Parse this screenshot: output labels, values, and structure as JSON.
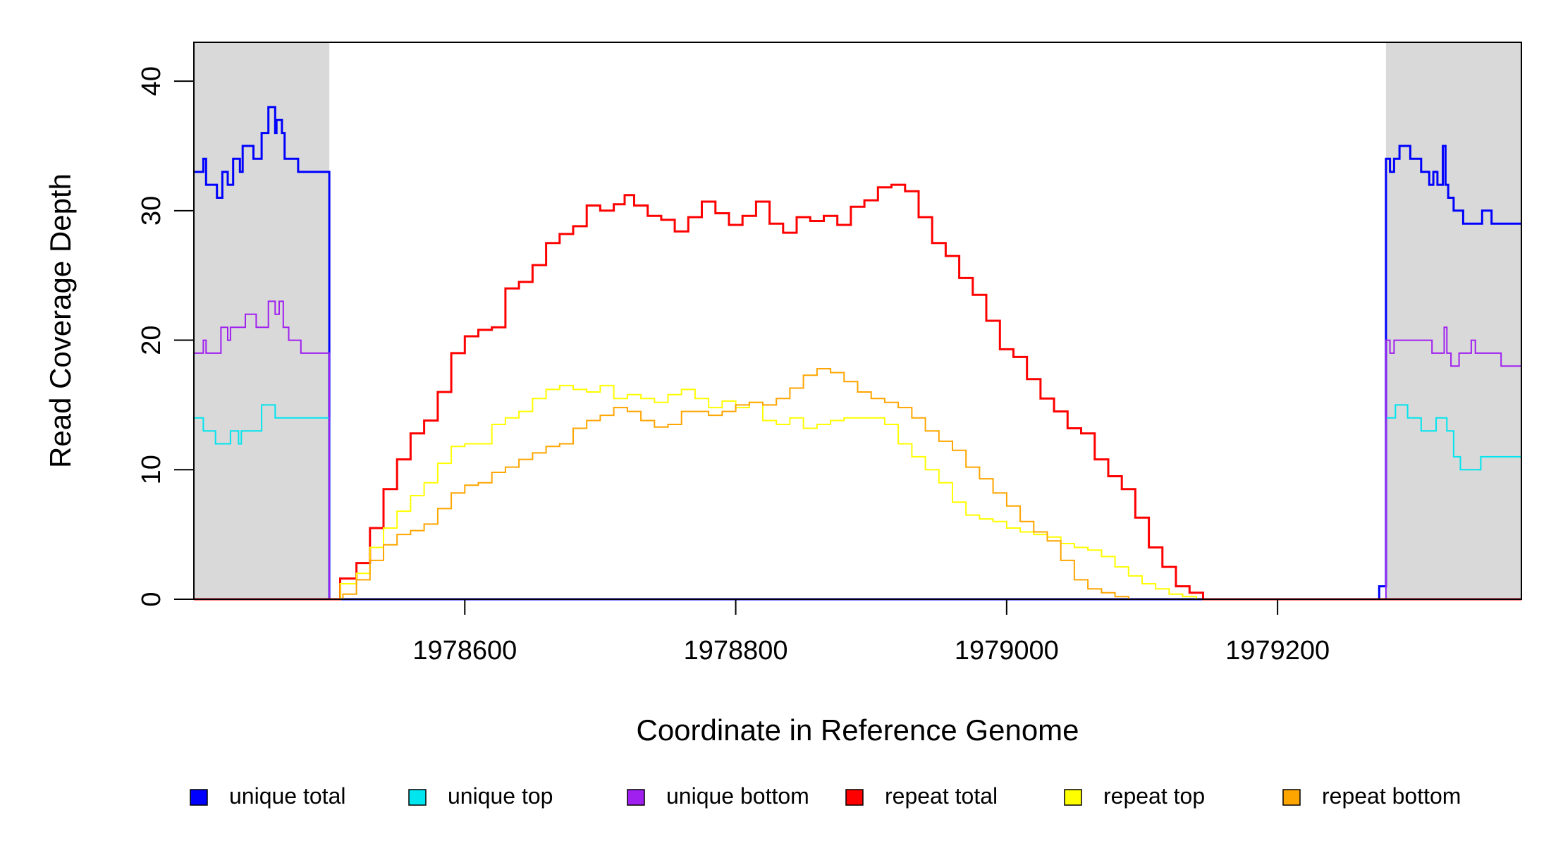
{
  "chart_data": {
    "type": "line",
    "xlabel": "Coordinate in Reference Genome",
    "ylabel": "Read Coverage Depth",
    "xlim": [
      1978400,
      1979380
    ],
    "ylim": [
      0,
      43
    ],
    "x_ticks": [
      1978600,
      1978800,
      1979000,
      1979200
    ],
    "x_tick_labels": [
      "1978600",
      "1978800",
      "1979000",
      "1979200"
    ],
    "y_ticks": [
      0,
      10,
      20,
      30,
      40
    ],
    "y_tick_labels": [
      "0",
      "10",
      "20",
      "30",
      "40"
    ],
    "shaded_regions": [
      [
        1978400,
        1978500
      ],
      [
        1979280,
        1979380
      ]
    ],
    "shade_color": "#d9d9d9",
    "legend_position": "bottom",
    "series": [
      {
        "name": "unique total",
        "color": "#0000ff",
        "width": 3,
        "points": [
          [
            1978400,
            33
          ],
          [
            1978407,
            34
          ],
          [
            1978409,
            32
          ],
          [
            1978417,
            31
          ],
          [
            1978421,
            33
          ],
          [
            1978425,
            32
          ],
          [
            1978429,
            34
          ],
          [
            1978434,
            33
          ],
          [
            1978436,
            35
          ],
          [
            1978444,
            34
          ],
          [
            1978450,
            36
          ],
          [
            1978455,
            38
          ],
          [
            1978460,
            36
          ],
          [
            1978461,
            37
          ],
          [
            1978465,
            36
          ],
          [
            1978467,
            34
          ],
          [
            1978477,
            33
          ],
          [
            1978500,
            33
          ],
          [
            1978500,
            0
          ],
          [
            1979275,
            0
          ],
          [
            1979275,
            1
          ],
          [
            1979279,
            1
          ],
          [
            1979280,
            34
          ],
          [
            1979283,
            33
          ],
          [
            1979286,
            34
          ],
          [
            1979290,
            35
          ],
          [
            1979298,
            34
          ],
          [
            1979306,
            33
          ],
          [
            1979312,
            32
          ],
          [
            1979315,
            33
          ],
          [
            1979318,
            32
          ],
          [
            1979322,
            35
          ],
          [
            1979324,
            32
          ],
          [
            1979326,
            31
          ],
          [
            1979330,
            30
          ],
          [
            1979337,
            29
          ],
          [
            1979351,
            30
          ],
          [
            1979358,
            29
          ],
          [
            1979380,
            29
          ]
        ]
      },
      {
        "name": "unique top",
        "color": "#00e5ee",
        "width": 2,
        "points": [
          [
            1978400,
            14
          ],
          [
            1978407,
            13
          ],
          [
            1978416,
            12
          ],
          [
            1978427,
            13
          ],
          [
            1978433,
            12
          ],
          [
            1978435,
            13
          ],
          [
            1978450,
            15
          ],
          [
            1978460,
            14
          ],
          [
            1978500,
            14
          ],
          [
            1978500,
            0
          ],
          [
            1979280,
            0
          ],
          [
            1979280,
            14
          ],
          [
            1979287,
            15
          ],
          [
            1979296,
            14
          ],
          [
            1979306,
            13
          ],
          [
            1979317,
            14
          ],
          [
            1979325,
            13
          ],
          [
            1979330,
            11
          ],
          [
            1979335,
            10
          ],
          [
            1979350,
            11
          ],
          [
            1979380,
            11
          ]
        ]
      },
      {
        "name": "unique bottom",
        "color": "#a020f0",
        "width": 2,
        "points": [
          [
            1978400,
            19
          ],
          [
            1978407,
            20
          ],
          [
            1978409,
            19
          ],
          [
            1978420,
            21
          ],
          [
            1978425,
            20
          ],
          [
            1978427,
            21
          ],
          [
            1978438,
            22
          ],
          [
            1978446,
            21
          ],
          [
            1978455,
            23
          ],
          [
            1978460,
            22
          ],
          [
            1978463,
            23
          ],
          [
            1978466,
            21
          ],
          [
            1978470,
            20
          ],
          [
            1978479,
            19
          ],
          [
            1978500,
            19
          ],
          [
            1978500,
            0
          ],
          [
            1979280,
            0
          ],
          [
            1979280,
            20
          ],
          [
            1979283,
            19
          ],
          [
            1979286,
            20
          ],
          [
            1979314,
            19
          ],
          [
            1979323,
            21
          ],
          [
            1979325,
            19
          ],
          [
            1979328,
            18
          ],
          [
            1979334,
            19
          ],
          [
            1979343,
            20
          ],
          [
            1979346,
            19
          ],
          [
            1979365,
            18
          ],
          [
            1979380,
            18
          ]
        ]
      },
      {
        "name": "repeat total",
        "color": "#ff0000",
        "width": 3,
        "points": [
          [
            1978400,
            0
          ],
          [
            1978500,
            0
          ],
          [
            1978508,
            1.6
          ],
          [
            1978520,
            2.8
          ],
          [
            1978530,
            5.5
          ],
          [
            1978540,
            8.5
          ],
          [
            1978550,
            10.8
          ],
          [
            1978560,
            12.8
          ],
          [
            1978570,
            13.8
          ],
          [
            1978580,
            16
          ],
          [
            1978590,
            19
          ],
          [
            1978600,
            20.3
          ],
          [
            1978610,
            20.8
          ],
          [
            1978620,
            21
          ],
          [
            1978630,
            24
          ],
          [
            1978640,
            24.5
          ],
          [
            1978650,
            25.8
          ],
          [
            1978660,
            27.5
          ],
          [
            1978670,
            28.2
          ],
          [
            1978680,
            28.8
          ],
          [
            1978690,
            30.4
          ],
          [
            1978700,
            30
          ],
          [
            1978710,
            30.5
          ],
          [
            1978718,
            31.2
          ],
          [
            1978725,
            30.4
          ],
          [
            1978735,
            29.6
          ],
          [
            1978745,
            29.3
          ],
          [
            1978755,
            28.4
          ],
          [
            1978765,
            29.5
          ],
          [
            1978775,
            30.7
          ],
          [
            1978785,
            29.8
          ],
          [
            1978795,
            28.9
          ],
          [
            1978805,
            29.6
          ],
          [
            1978815,
            30.7
          ],
          [
            1978825,
            29
          ],
          [
            1978835,
            28.3
          ],
          [
            1978845,
            29.5
          ],
          [
            1978855,
            29.2
          ],
          [
            1978865,
            29.6
          ],
          [
            1978875,
            28.9
          ],
          [
            1978885,
            30.3
          ],
          [
            1978895,
            30.8
          ],
          [
            1978905,
            31.8
          ],
          [
            1978915,
            32
          ],
          [
            1978925,
            31.5
          ],
          [
            1978935,
            29.5
          ],
          [
            1978945,
            27.5
          ],
          [
            1978955,
            26.5
          ],
          [
            1978965,
            24.8
          ],
          [
            1978975,
            23.5
          ],
          [
            1978985,
            21.5
          ],
          [
            1978995,
            19.3
          ],
          [
            1979005,
            18.7
          ],
          [
            1979015,
            17
          ],
          [
            1979025,
            15.5
          ],
          [
            1979035,
            14.5
          ],
          [
            1979045,
            13.2
          ],
          [
            1979055,
            12.8
          ],
          [
            1979065,
            10.8
          ],
          [
            1979075,
            9.5
          ],
          [
            1979085,
            8.5
          ],
          [
            1979095,
            6.3
          ],
          [
            1979105,
            4
          ],
          [
            1979115,
            2.5
          ],
          [
            1979125,
            1
          ],
          [
            1979135,
            0.5
          ],
          [
            1979145,
            0
          ],
          [
            1979380,
            0
          ]
        ]
      },
      {
        "name": "repeat top",
        "color": "#ffff00",
        "width": 2,
        "points": [
          [
            1978400,
            0
          ],
          [
            1978500,
            0
          ],
          [
            1978508,
            1.2
          ],
          [
            1978520,
            2
          ],
          [
            1978530,
            4
          ],
          [
            1978540,
            5.5
          ],
          [
            1978550,
            6.8
          ],
          [
            1978560,
            8
          ],
          [
            1978570,
            9
          ],
          [
            1978580,
            10.5
          ],
          [
            1978590,
            11.8
          ],
          [
            1978600,
            12
          ],
          [
            1978610,
            12
          ],
          [
            1978620,
            13.5
          ],
          [
            1978630,
            14
          ],
          [
            1978640,
            14.5
          ],
          [
            1978650,
            15.5
          ],
          [
            1978660,
            16.2
          ],
          [
            1978670,
            16.5
          ],
          [
            1978680,
            16.2
          ],
          [
            1978690,
            16
          ],
          [
            1978700,
            16.5
          ],
          [
            1978710,
            15.5
          ],
          [
            1978720,
            15.8
          ],
          [
            1978730,
            15.5
          ],
          [
            1978740,
            15.2
          ],
          [
            1978750,
            15.8
          ],
          [
            1978760,
            16.2
          ],
          [
            1978770,
            15.5
          ],
          [
            1978780,
            14.8
          ],
          [
            1978790,
            15.3
          ],
          [
            1978800,
            14.8
          ],
          [
            1978810,
            15.2
          ],
          [
            1978820,
            13.8
          ],
          [
            1978830,
            13.5
          ],
          [
            1978840,
            14
          ],
          [
            1978850,
            13.2
          ],
          [
            1978860,
            13.5
          ],
          [
            1978870,
            13.8
          ],
          [
            1978880,
            14
          ],
          [
            1978890,
            14
          ],
          [
            1978900,
            14
          ],
          [
            1978910,
            13.5
          ],
          [
            1978920,
            12
          ],
          [
            1978930,
            11
          ],
          [
            1978940,
            10
          ],
          [
            1978950,
            9
          ],
          [
            1978960,
            7.5
          ],
          [
            1978970,
            6.5
          ],
          [
            1978980,
            6.2
          ],
          [
            1978990,
            6
          ],
          [
            1979000,
            5.5
          ],
          [
            1979010,
            5.2
          ],
          [
            1979020,
            5
          ],
          [
            1979030,
            4.8
          ],
          [
            1979040,
            4.3
          ],
          [
            1979050,
            4
          ],
          [
            1979060,
            3.8
          ],
          [
            1979070,
            3.3
          ],
          [
            1979080,
            2.5
          ],
          [
            1979090,
            1.8
          ],
          [
            1979100,
            1.2
          ],
          [
            1979110,
            0.8
          ],
          [
            1979120,
            0.4
          ],
          [
            1979130,
            0.2
          ],
          [
            1979140,
            0
          ],
          [
            1979380,
            0
          ]
        ]
      },
      {
        "name": "repeat bottom",
        "color": "#ffa500",
        "width": 2,
        "points": [
          [
            1978400,
            0
          ],
          [
            1978500,
            0
          ],
          [
            1978510,
            0.4
          ],
          [
            1978520,
            1.5
          ],
          [
            1978530,
            3
          ],
          [
            1978540,
            4.2
          ],
          [
            1978550,
            5
          ],
          [
            1978560,
            5.3
          ],
          [
            1978570,
            5.8
          ],
          [
            1978580,
            7
          ],
          [
            1978590,
            8.2
          ],
          [
            1978600,
            8.8
          ],
          [
            1978610,
            9
          ],
          [
            1978620,
            9.8
          ],
          [
            1978630,
            10.2
          ],
          [
            1978640,
            10.8
          ],
          [
            1978650,
            11.3
          ],
          [
            1978660,
            11.8
          ],
          [
            1978670,
            12
          ],
          [
            1978680,
            13.2
          ],
          [
            1978690,
            13.8
          ],
          [
            1978700,
            14.2
          ],
          [
            1978710,
            14.8
          ],
          [
            1978720,
            14.5
          ],
          [
            1978730,
            13.8
          ],
          [
            1978740,
            13.3
          ],
          [
            1978750,
            13.5
          ],
          [
            1978760,
            14.5
          ],
          [
            1978770,
            14.5
          ],
          [
            1978780,
            14.2
          ],
          [
            1978790,
            14.5
          ],
          [
            1978800,
            15
          ],
          [
            1978810,
            15.2
          ],
          [
            1978820,
            15
          ],
          [
            1978830,
            15.5
          ],
          [
            1978840,
            16.3
          ],
          [
            1978850,
            17.3
          ],
          [
            1978860,
            17.8
          ],
          [
            1978870,
            17.5
          ],
          [
            1978880,
            16.8
          ],
          [
            1978890,
            16
          ],
          [
            1978900,
            15.5
          ],
          [
            1978910,
            15.2
          ],
          [
            1978920,
            14.8
          ],
          [
            1978930,
            14
          ],
          [
            1978940,
            13
          ],
          [
            1978950,
            12.2
          ],
          [
            1978960,
            11.5
          ],
          [
            1978970,
            10.2
          ],
          [
            1978980,
            9.3
          ],
          [
            1978990,
            8.2
          ],
          [
            1979000,
            7.2
          ],
          [
            1979010,
            6
          ],
          [
            1979020,
            5.2
          ],
          [
            1979030,
            4.5
          ],
          [
            1979040,
            3
          ],
          [
            1979050,
            1.5
          ],
          [
            1979060,
            0.8
          ],
          [
            1979070,
            0.5
          ],
          [
            1979080,
            0.2
          ],
          [
            1979090,
            0
          ],
          [
            1979380,
            0
          ]
        ]
      }
    ]
  }
}
